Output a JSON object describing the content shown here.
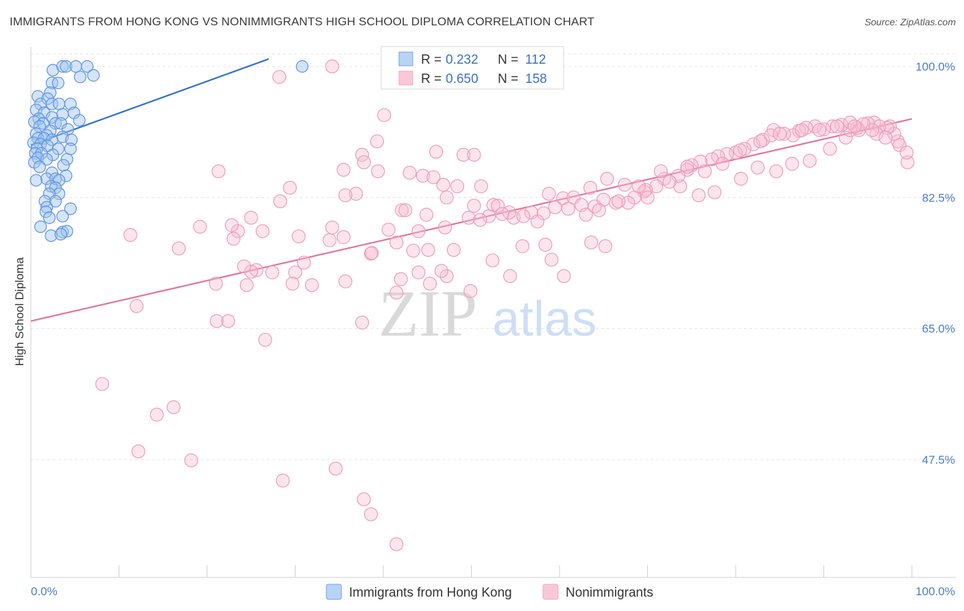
{
  "title": "IMMIGRANTS FROM HONG KONG VS NONIMMIGRANTS HIGH SCHOOL DIPLOMA CORRELATION CHART",
  "source": "Source: ZipAtlas.com",
  "watermark": {
    "zip": "ZIP",
    "atlas": "atlas"
  },
  "colors": {
    "blue": "#6fa3e8",
    "blue_line": "#2f6fd0",
    "pink": "#f1a6c0",
    "pink_line": "#e4729a",
    "tick_text": "#4a7cc9"
  },
  "chart_data": {
    "type": "scatter",
    "title": "IMMIGRANTS FROM HONG KONG VS NONIMMIGRANTS HIGH SCHOOL DIPLOMA CORRELATION CHART",
    "xlabel": "",
    "ylabel": "High School Diploma",
    "xlim": [
      0,
      100
    ],
    "ylim": [
      32,
      101
    ],
    "x_tick_labels": [
      "0.0%",
      "100.0%"
    ],
    "y_ticks": [
      47.5,
      65.0,
      82.5,
      100.0
    ],
    "y_tick_labels": [
      "47.5%",
      "65.0%",
      "82.5%",
      "100.0%"
    ],
    "grid": "horizontal dashed",
    "legend": {
      "position": "top-center",
      "entries": [
        {
          "r_label": "R =",
          "r_value": "0.232",
          "n_label": "N =",
          "n_value": "112"
        },
        {
          "r_label": "R =",
          "r_value": "0.650",
          "n_label": "N =",
          "n_value": "158"
        }
      ]
    },
    "series": [
      {
        "name": "Immigrants from Hong Kong",
        "color": "#6fa3e8",
        "trend": {
          "x": [
            0,
            27
          ],
          "y": [
            89.5,
            101
          ]
        },
        "points": [
          [
            2.5,
            99.5
          ],
          [
            3.6,
            100
          ],
          [
            4,
            100
          ],
          [
            5.1,
            100
          ],
          [
            6.4,
            100
          ],
          [
            7.1,
            98.8
          ],
          [
            5.6,
            98.6
          ],
          [
            2.4,
            97.8
          ],
          [
            3.1,
            97.8
          ],
          [
            2.2,
            96.5
          ],
          [
            0.8,
            96.0
          ],
          [
            1.9,
            95.7
          ],
          [
            1.1,
            95.0
          ],
          [
            2.4,
            95.0
          ],
          [
            3.2,
            95.0
          ],
          [
            4.5,
            95.0
          ],
          [
            0.6,
            94.2
          ],
          [
            1.5,
            93.8
          ],
          [
            3.6,
            93.6
          ],
          [
            4.9,
            93.8
          ],
          [
            0.9,
            93.0
          ],
          [
            2.4,
            93.2
          ],
          [
            5.5,
            92.8
          ],
          [
            0.4,
            92.6
          ],
          [
            1.4,
            92.4
          ],
          [
            2.8,
            92.4
          ],
          [
            3.4,
            92.4
          ],
          [
            1.0,
            92.0
          ],
          [
            4.2,
            91.6
          ],
          [
            2.2,
            91.4
          ],
          [
            0.6,
            91.0
          ],
          [
            1.8,
            90.8
          ],
          [
            3.6,
            90.6
          ],
          [
            0.8,
            90.4
          ],
          [
            1.5,
            90.4
          ],
          [
            2.4,
            90.2
          ],
          [
            4.6,
            90.2
          ],
          [
            0.3,
            89.8
          ],
          [
            1.1,
            89.6
          ],
          [
            1.9,
            89.4
          ],
          [
            0.7,
            89.0
          ],
          [
            3.1,
            89.0
          ],
          [
            4.5,
            89.0
          ],
          [
            0.5,
            88.4
          ],
          [
            1.2,
            88.4
          ],
          [
            2.5,
            88.2
          ],
          [
            0.8,
            87.8
          ],
          [
            1.8,
            87.6
          ],
          [
            4.1,
            87.6
          ],
          [
            0.4,
            87.2
          ],
          [
            3.7,
            86.8
          ],
          [
            1.0,
            86.6
          ],
          [
            2.4,
            85.8
          ],
          [
            4.0,
            85.4
          ],
          [
            1.8,
            85.0
          ],
          [
            2.8,
            85.0
          ],
          [
            3.2,
            84.8
          ],
          [
            0.6,
            84.8
          ],
          [
            2.3,
            84.0
          ],
          [
            2.8,
            83.8
          ],
          [
            3.2,
            83.0
          ],
          [
            2.1,
            83.0
          ],
          [
            2.8,
            82.0
          ],
          [
            1.6,
            82.0
          ],
          [
            1.8,
            81.2
          ],
          [
            4.5,
            81.0
          ],
          [
            1.7,
            80.6
          ],
          [
            3.6,
            80.0
          ],
          [
            2.1,
            79.8
          ],
          [
            1.1,
            78.6
          ],
          [
            3.6,
            77.9
          ],
          [
            4.1,
            78.0
          ],
          [
            2.3,
            77.4
          ],
          [
            3.4,
            77.6
          ],
          [
            30.8,
            100.0
          ]
        ]
      },
      {
        "name": "Nonimmigrants",
        "color": "#f1a6c0",
        "trend": {
          "x": [
            0,
            100
          ],
          "y": [
            66.0,
            93.0
          ]
        },
        "points": [
          [
            34.2,
            100.0
          ],
          [
            28.2,
            98.6
          ],
          [
            40.1,
            93.5
          ],
          [
            39.3,
            90.0
          ],
          [
            46.0,
            88.6
          ],
          [
            49.1,
            88.2
          ],
          [
            50.3,
            88.2
          ],
          [
            37.6,
            88.2
          ],
          [
            37.8,
            87.2
          ],
          [
            35.5,
            86.2
          ],
          [
            39.4,
            86.0
          ],
          [
            21.3,
            86.0
          ],
          [
            43.0,
            85.8
          ],
          [
            44.5,
            85.4
          ],
          [
            45.7,
            85.2
          ],
          [
            46.8,
            84.2
          ],
          [
            48.4,
            84.0
          ],
          [
            51.1,
            84.0
          ],
          [
            29.4,
            83.8
          ],
          [
            36.9,
            83.0
          ],
          [
            35.7,
            82.8
          ],
          [
            47.2,
            82.5
          ],
          [
            28.3,
            82.0
          ],
          [
            50.3,
            81.4
          ],
          [
            52.5,
            81.5
          ],
          [
            53.0,
            81.4
          ],
          [
            42.1,
            80.8
          ],
          [
            42.5,
            80.8
          ],
          [
            44.9,
            80.2
          ],
          [
            25.0,
            79.8
          ],
          [
            54.8,
            79.8
          ],
          [
            49.7,
            79.8
          ],
          [
            58.8,
            83.0
          ],
          [
            60.4,
            82.4
          ],
          [
            61.6,
            82.5
          ],
          [
            63.5,
            83.8
          ],
          [
            65.4,
            85.0
          ],
          [
            67.4,
            84.2
          ],
          [
            69.6,
            83.3
          ],
          [
            71.9,
            85.0
          ],
          [
            73.7,
            84.0
          ],
          [
            75.8,
            82.8
          ],
          [
            77.6,
            83.2
          ],
          [
            80.6,
            85.0
          ],
          [
            82.5,
            86.5
          ],
          [
            84.6,
            86.0
          ],
          [
            86.4,
            87.0
          ],
          [
            88.4,
            87.4
          ],
          [
            90.7,
            89.0
          ],
          [
            92.5,
            90.5
          ],
          [
            94.0,
            91.5
          ],
          [
            95.7,
            92.5
          ],
          [
            97.5,
            92.0
          ],
          [
            98.4,
            90.0
          ],
          [
            98.6,
            89.5
          ],
          [
            99.5,
            87.2
          ],
          [
            99.4,
            88.5
          ],
          [
            98.0,
            91.0
          ],
          [
            97.2,
            91.8
          ],
          [
            96.3,
            92.0
          ],
          [
            95.0,
            92.4
          ],
          [
            93.8,
            91.8
          ],
          [
            93.0,
            91.5
          ],
          [
            92.0,
            92.2
          ],
          [
            91.0,
            92.0
          ],
          [
            90.0,
            91.6
          ],
          [
            89.0,
            92.0
          ],
          [
            88.0,
            91.8
          ],
          [
            87.2,
            91.4
          ],
          [
            86.5,
            90.8
          ],
          [
            85.5,
            91.0
          ],
          [
            84.3,
            91.5
          ],
          [
            83.1,
            90.2
          ],
          [
            82.0,
            89.6
          ],
          [
            81.0,
            89.0
          ],
          [
            80.0,
            88.5
          ],
          [
            79.0,
            88.3
          ],
          [
            78.0,
            88.0
          ],
          [
            77.3,
            87.6
          ],
          [
            76.0,
            87.3
          ],
          [
            75.0,
            86.8
          ],
          [
            74.5,
            86.2
          ],
          [
            73.5,
            85.4
          ],
          [
            72.5,
            84.6
          ],
          [
            71.0,
            84.0
          ],
          [
            69.8,
            83.5
          ],
          [
            68.5,
            82.5
          ],
          [
            67.8,
            81.8
          ],
          [
            66.4,
            81.8
          ],
          [
            65.0,
            82.2
          ],
          [
            64.0,
            81.3
          ],
          [
            62.5,
            81.5
          ],
          [
            61.0,
            81.0
          ],
          [
            59.5,
            81.2
          ],
          [
            58.2,
            80.4
          ],
          [
            56.8,
            80.5
          ],
          [
            55.9,
            80.0
          ],
          [
            54.3,
            80.5
          ],
          [
            53.5,
            80.3
          ],
          [
            52.0,
            80.0
          ],
          [
            51.0,
            79.5
          ],
          [
            57.5,
            79.3
          ],
          [
            63.0,
            80.2
          ],
          [
            64.5,
            80.8
          ],
          [
            66.7,
            82.0
          ],
          [
            70.0,
            82.5
          ],
          [
            69.0,
            84.0
          ],
          [
            71.5,
            86.0
          ],
          [
            74.5,
            86.6
          ],
          [
            76.5,
            86.0
          ],
          [
            78.5,
            87.0
          ],
          [
            80.5,
            88.8
          ],
          [
            82.8,
            90.0
          ],
          [
            84.0,
            90.8
          ],
          [
            85.0,
            91.0
          ],
          [
            87.5,
            91.5
          ],
          [
            89.5,
            91.5
          ],
          [
            91.5,
            92.0
          ],
          [
            93.0,
            92.5
          ],
          [
            94.5,
            92.3
          ],
          [
            96.0,
            91.0
          ],
          [
            97.0,
            90.5
          ],
          [
            95.5,
            91.5
          ],
          [
            93.5,
            92.0
          ],
          [
            44.0,
            78.0
          ],
          [
            40.6,
            78.2
          ],
          [
            47.0,
            78.5
          ],
          [
            19.2,
            78.6
          ],
          [
            26.3,
            78.0
          ],
          [
            23.5,
            78.0
          ],
          [
            34.2,
            78.5
          ],
          [
            30.4,
            77.3
          ],
          [
            35.5,
            77.2
          ],
          [
            33.9,
            76.8
          ],
          [
            41.5,
            76.5
          ],
          [
            55.8,
            76.0
          ],
          [
            63.6,
            76.5
          ],
          [
            58.4,
            76.2
          ],
          [
            43.4,
            75.4
          ],
          [
            45.1,
            75.5
          ],
          [
            59.1,
            74.2
          ],
          [
            38.6,
            75.0
          ],
          [
            48.0,
            75.5
          ],
          [
            31.0,
            73.8
          ],
          [
            27.4,
            72.5
          ],
          [
            25.6,
            72.8
          ],
          [
            25.0,
            72.6
          ],
          [
            30.0,
            72.5
          ],
          [
            35.7,
            71.3
          ],
          [
            29.7,
            71.0
          ],
          [
            45.3,
            71.0
          ],
          [
            47.2,
            72.0
          ],
          [
            54.4,
            72.0
          ],
          [
            60.5,
            72.0
          ],
          [
            24.2,
            73.3
          ],
          [
            24.5,
            70.8
          ],
          [
            31.9,
            70.8
          ],
          [
            44.0,
            72.5
          ],
          [
            41.5,
            69.8
          ],
          [
            49.9,
            70.0
          ],
          [
            21.1,
            66.0
          ],
          [
            22.4,
            66.0
          ],
          [
            37.6,
            65.8
          ],
          [
            26.6,
            63.5
          ],
          [
            12.0,
            68.0
          ],
          [
            21.0,
            71.0
          ],
          [
            11.3,
            77.5
          ],
          [
            14.3,
            53.5
          ],
          [
            16.2,
            54.5
          ],
          [
            12.2,
            48.6
          ],
          [
            18.2,
            47.4
          ],
          [
            28.6,
            44.7
          ],
          [
            34.6,
            46.3
          ],
          [
            37.8,
            42.2
          ],
          [
            38.6,
            40.2
          ],
          [
            41.5,
            36.2
          ],
          [
            8.1,
            57.6
          ],
          [
            16.8,
            75.7
          ],
          [
            23.0,
            77.0
          ],
          [
            22.8,
            78.8
          ],
          [
            38.7,
            75.1
          ],
          [
            46.6,
            72.7
          ],
          [
            52.4,
            74.1
          ],
          [
            42.0,
            71.6
          ],
          [
            65.2,
            76.0
          ]
        ]
      }
    ]
  },
  "bottom_legend": [
    {
      "label": "Immigrants from Hong Kong"
    },
    {
      "label": "Nonimmigrants"
    }
  ]
}
